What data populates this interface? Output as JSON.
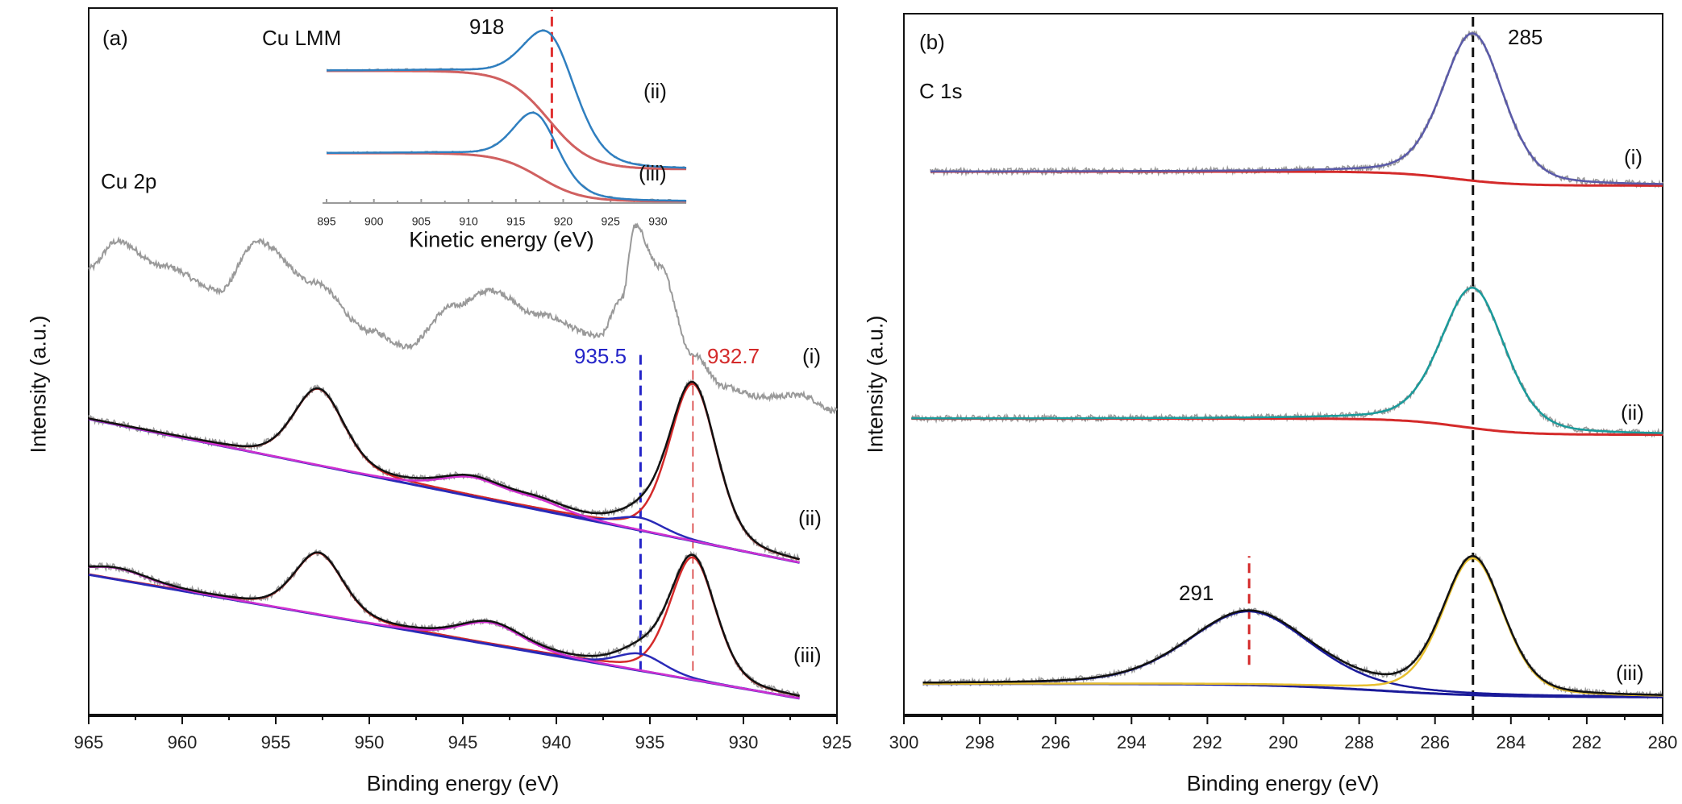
{
  "chart_data": [
    {
      "id": "a",
      "type": "line",
      "panel_label": "(a)",
      "title": "Cu 2p",
      "xlabel": "Binding energy (eV)",
      "ylabel": "Intensity (a.u.)",
      "xlim": [
        965,
        925
      ],
      "ylim": [
        0,
        100
      ],
      "xticks": [
        965,
        960,
        955,
        950,
        945,
        940,
        935,
        930,
        925
      ],
      "minor_tick_step": 2.5,
      "grid": false,
      "curve_labels": [
        "(i)",
        "(ii)",
        "(iii)"
      ],
      "annotations": [
        {
          "text": "935.5",
          "x": 935.5,
          "y_range": [
            6.3,
            51.4
          ],
          "color": "#2424c8"
        },
        {
          "text": "932.7",
          "x": 932.7,
          "y_range": [
            6.3,
            51.4
          ],
          "color": "#d42a2a"
        }
      ],
      "spectra": [
        {
          "label": "(i)",
          "raw_points": [
            [
              965,
              63.2
            ],
            [
              963.5,
              67
            ],
            [
              961,
              63.5
            ],
            [
              958,
              60.1
            ],
            [
              956,
              67
            ],
            [
              953,
              61.3
            ],
            [
              950,
              54.4
            ],
            [
              948,
              52.2
            ],
            [
              945.5,
              57.9
            ],
            [
              943.5,
              60.1
            ],
            [
              941,
              56.7
            ],
            [
              937.7,
              53.6
            ],
            [
              936.5,
              59
            ],
            [
              935.8,
              69.2
            ],
            [
              934.5,
              63.5
            ],
            [
              932.7,
              51
            ],
            [
              931,
              46.5
            ],
            [
              929,
              45
            ],
            [
              927,
              45.3
            ],
            [
              925,
              43
            ]
          ],
          "raw_color": "#9a9a9a"
        },
        {
          "label": "(ii)",
          "range": [
            965,
            927
          ],
          "background": {
            "type": "linear",
            "points": [
              [
                965,
                41.9
              ],
              [
                927,
                21.6
              ]
            ]
          },
          "peaks": [
            {
              "center": 932.7,
              "height": 22.2,
              "fwhm": 3.0,
              "color": "#d42a2a"
            },
            {
              "center": 952.7,
              "height": 10.8,
              "fwhm": 3.2,
              "color": "#d42a2a"
            },
            {
              "center": 935.5,
              "height": 1.8,
              "fwhm": 3.0,
              "color": "#2a2ab8"
            },
            {
              "center": 944.5,
              "height": 2.6,
              "fwhm": 4.0,
              "color": "#d030d0"
            },
            {
              "center": 941.0,
              "height": 1.2,
              "fwhm": 3.5,
              "color": "#d030d0"
            }
          ],
          "fit_color": "#111111",
          "raw_color": "#9a9a9a",
          "baseline_color": "#2a2ab8"
        },
        {
          "label": "(iii)",
          "range": [
            965,
            927
          ],
          "background": {
            "type": "linear",
            "points": [
              [
                965,
                19.9
              ],
              [
                927,
                2.4
              ]
            ]
          },
          "peaks": [
            {
              "center": 932.7,
              "height": 17.3,
              "fwhm": 2.9,
              "color": "#d42a2a"
            },
            {
              "center": 952.7,
              "height": 8.7,
              "fwhm": 3.1,
              "color": "#d42a2a"
            },
            {
              "center": 935.5,
              "height": 2.4,
              "fwhm": 3.0,
              "color": "#2a2ab8"
            },
            {
              "center": 943.5,
              "height": 3.1,
              "fwhm": 4.0,
              "color": "#d030d0"
            },
            {
              "center": 963.5,
              "height": 1.6,
              "fwhm": 4.0,
              "color": "#d030d0"
            }
          ],
          "fit_color": "#111111",
          "raw_color": "#9a9a9a",
          "baseline_color": "#2a2ab8"
        }
      ]
    },
    {
      "id": "inset",
      "type": "line",
      "title": "Cu LMM",
      "xlabel": "Kinetic energy (eV)",
      "xlim": [
        895,
        933
      ],
      "ylim": [
        0,
        100
      ],
      "xticks": [
        895,
        900,
        905,
        910,
        915,
        920,
        925,
        930
      ],
      "minor_tick_step": 2.5,
      "curve_labels": [
        "(ii)",
        "(iii)"
      ],
      "annotations": [
        {
          "text": "918",
          "x": 918.8,
          "y_range": [
            29,
            100
          ],
          "color": "#e03030"
        }
      ],
      "spectra": [
        {
          "label": "(ii)",
          "range": [
            895,
            933
          ],
          "background": {
            "type": "step",
            "low_x_value": 70.7,
            "high_x_value": 18.1,
            "center": 918.5,
            "width": 2.2
          },
          "peaks": [
            {
              "center": 918.8,
              "height": 47,
              "fwhm": 6.5,
              "color": "#2f7fc0"
            }
          ],
          "fit_color": "#2f7fc0",
          "raw_color": "#9a9a9a",
          "baseline_color": "#d06060"
        },
        {
          "label": "(iii)",
          "range": [
            895,
            933
          ],
          "background": {
            "type": "step",
            "low_x_value": 26.7,
            "high_x_value": 0.9,
            "center": 917.5,
            "width": 2.2
          },
          "peaks": [
            {
              "center": 917.2,
              "height": 33,
              "fwhm": 5.6,
              "color": "#2f7fc0"
            }
          ],
          "fit_color": "#2f7fc0",
          "raw_color": "#9a9a9a",
          "baseline_color": "#d06060"
        }
      ]
    },
    {
      "id": "b",
      "type": "line",
      "panel_label": "(b)",
      "title": "C 1s",
      "xlabel": "Binding energy (eV)",
      "ylabel": "Intensity (a.u.)",
      "xlim": [
        300,
        280
      ],
      "ylim": [
        0,
        100
      ],
      "xticks": [
        300,
        298,
        296,
        294,
        292,
        290,
        288,
        286,
        284,
        282,
        280
      ],
      "minor_tick_step": 1,
      "grid": false,
      "curve_labels": [
        "(i)",
        "(ii)",
        "(iii)"
      ],
      "annotations": [
        {
          "text": "285",
          "x": 285.0,
          "y_range": [
            0,
            100
          ],
          "color": "#111111"
        },
        {
          "text": "291",
          "x": 290.9,
          "y_range": [
            7.2,
            22.7
          ],
          "color": "#d42a2a"
        }
      ],
      "spectra": [
        {
          "label": "(i)",
          "range": [
            299.3,
            280
          ],
          "background": {
            "type": "step",
            "low_x_value": 75.5,
            "high_x_value": 77.5,
            "center": 285.5,
            "width": 0.8
          },
          "peaks": [
            {
              "center": 285.0,
              "height": 21,
              "fwhm": 1.9,
              "color": "#5a5aa8"
            }
          ],
          "fit_color": "#5a5aa8",
          "raw_color": "#9a9a9a",
          "baseline_color": "#d42a2a"
        },
        {
          "label": "(ii)",
          "range": [
            299.8,
            280
          ],
          "background": {
            "type": "step",
            "low_x_value": 40.0,
            "high_x_value": 42.3,
            "center": 285.3,
            "width": 0.8
          },
          "peaks": [
            {
              "center": 285.0,
              "height": 20,
              "fwhm": 2.0,
              "color": "#1a9a9a"
            }
          ],
          "fit_color": "#1a9a9a",
          "raw_color": "#9a9a9a",
          "baseline_color": "#d42a2a"
        },
        {
          "label": "(iii)",
          "range": [
            299.5,
            280
          ],
          "background": {
            "type": "step",
            "low_x_value": 2.6,
            "high_x_value": 4.5,
            "center": 287.5,
            "width": 1.5
          },
          "peaks": [
            {
              "center": 290.9,
              "height": 10.5,
              "fwhm": 3.8,
              "color": "#1a1a9a"
            },
            {
              "center": 285.0,
              "height": 19.5,
              "fwhm": 1.9,
              "color": "#e8c030"
            }
          ],
          "fit_color": "#111111",
          "raw_color": "#9a9a9a",
          "baseline_color": "#1a1a9a"
        }
      ]
    }
  ]
}
